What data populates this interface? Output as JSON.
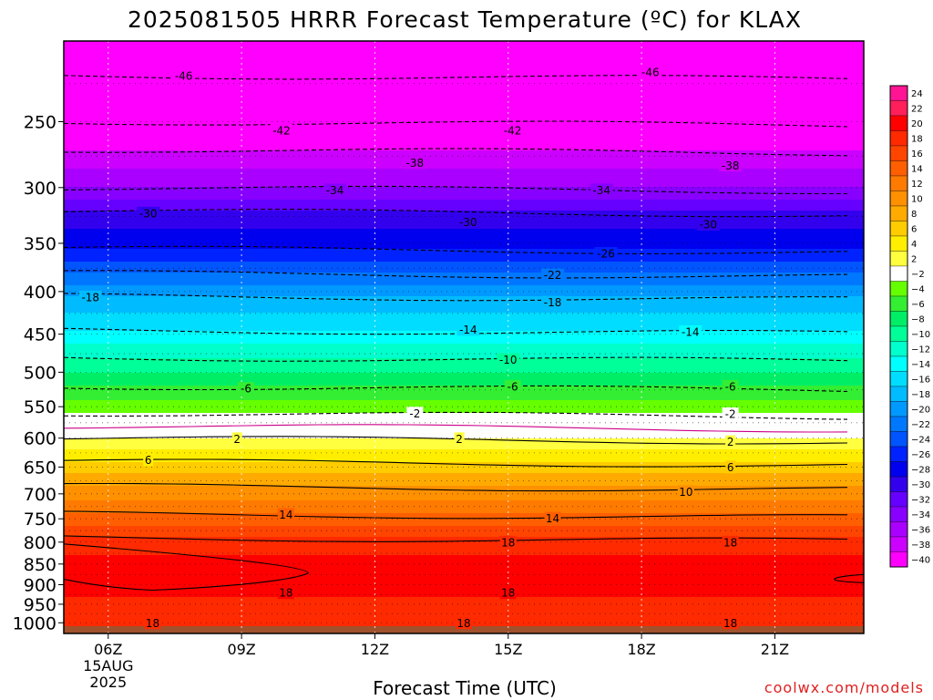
{
  "chart_data": {
    "type": "heatmap",
    "title": "2025081505 HRRR Forecast Temperature (ºC) for KLAX",
    "xlabel": "Forecast Time (UTC)",
    "ylabel": "",
    "credit": "coolwx.com/models",
    "x_range_hours": [
      5,
      23
    ],
    "x_ticks": [
      {
        "hour": 6,
        "label": "06Z",
        "date_line1": "15AUG",
        "date_line2": "2025"
      },
      {
        "hour": 9,
        "label": "09Z"
      },
      {
        "hour": 12,
        "label": "12Z"
      },
      {
        "hour": 15,
        "label": "15Z"
      },
      {
        "hour": 18,
        "label": "18Z"
      },
      {
        "hour": 21,
        "label": "21Z"
      }
    ],
    "y_scale": "log-pressure",
    "y_range_hpa": [
      1030,
      200
    ],
    "y_ticks": [
      250,
      300,
      350,
      400,
      450,
      500,
      550,
      600,
      650,
      700,
      750,
      800,
      850,
      900,
      950,
      1000
    ],
    "colorbar": {
      "levels": [
        "24",
        "22",
        "20",
        "18",
        "16",
        "14",
        "12",
        "10",
        "8",
        "6",
        "4",
        "2",
        "-2",
        "-4",
        "-6",
        "-8",
        "-10",
        "-12",
        "-14",
        "-16",
        "-18",
        "-20",
        "-22",
        "-24",
        "-26",
        "-28",
        "-30",
        "-32",
        "-34",
        "-36",
        "-38",
        "-40"
      ],
      "colors": [
        "#ff1493",
        "#ff1f5a",
        "#ff0000",
        "#ff2a00",
        "#ff4500",
        "#ff5f00",
        "#ff7a00",
        "#ff9000",
        "#ffaa00",
        "#ffcc00",
        "#ffee00",
        "#ffff40",
        "#ffffff",
        "#66ff00",
        "#33ee33",
        "#00ee66",
        "#00ff99",
        "#00ffcc",
        "#00ffff",
        "#00ddff",
        "#00bbff",
        "#0099ff",
        "#0077ff",
        "#0055ff",
        "#0022ff",
        "#0000ee",
        "#3300ee",
        "#6600ff",
        "#8800ff",
        "#aa00ff",
        "#cc00ff",
        "#ff00ff"
      ]
    },
    "surface_color": "#a0522d",
    "temperature_profile_hpa": [
      {
        "p": 200,
        "t": -50
      },
      {
        "p": 220,
        "t": -46
      },
      {
        "p": 250,
        "t": -42
      },
      {
        "p": 270,
        "t": -38
      },
      {
        "p": 300,
        "t": -34
      },
      {
        "p": 320,
        "t": -30
      },
      {
        "p": 355,
        "t": -26
      },
      {
        "p": 380,
        "t": -22
      },
      {
        "p": 405,
        "t": -18
      },
      {
        "p": 445,
        "t": -14
      },
      {
        "p": 480,
        "t": -10
      },
      {
        "p": 520,
        "t": -6
      },
      {
        "p": 560,
        "t": -2
      },
      {
        "p": 580,
        "t": 0
      },
      {
        "p": 600,
        "t": 2
      },
      {
        "p": 640,
        "t": 6
      },
      {
        "p": 685,
        "t": 10
      },
      {
        "p": 740,
        "t": 14
      },
      {
        "p": 790,
        "t": 18
      },
      {
        "p": 850,
        "t": 21
      },
      {
        "p": 900,
        "t": 22
      },
      {
        "p": 930,
        "t": 20
      },
      {
        "p": 970,
        "t": 18
      },
      {
        "p": 1000,
        "t": 18
      }
    ],
    "contour_labels": [
      {
        "value": "-46",
        "hour": 7.7,
        "p": 220
      },
      {
        "value": "-46",
        "hour": 18.2,
        "p": 218
      },
      {
        "value": "-42",
        "hour": 9.9,
        "p": 256
      },
      {
        "value": "-42",
        "hour": 15.1,
        "p": 256
      },
      {
        "value": "-38",
        "hour": 12.9,
        "p": 280
      },
      {
        "value": "-38",
        "hour": 20.0,
        "p": 282
      },
      {
        "value": "-34",
        "hour": 11.1,
        "p": 302
      },
      {
        "value": "-34",
        "hour": 17.1,
        "p": 302
      },
      {
        "value": "-30",
        "hour": 6.9,
        "p": 322
      },
      {
        "value": "-30",
        "hour": 14.1,
        "p": 330
      },
      {
        "value": "-30",
        "hour": 19.5,
        "p": 332
      },
      {
        "value": "-26",
        "hour": 17.2,
        "p": 360
      },
      {
        "value": "-22",
        "hour": 16.0,
        "p": 382
      },
      {
        "value": "-18",
        "hour": 5.6,
        "p": 406
      },
      {
        "value": "-18",
        "hour": 16.0,
        "p": 412
      },
      {
        "value": "-14",
        "hour": 14.1,
        "p": 444
      },
      {
        "value": "-14",
        "hour": 19.1,
        "p": 447
      },
      {
        "value": "-10",
        "hour": 15.0,
        "p": 483
      },
      {
        "value": "-6",
        "hour": 9.1,
        "p": 523
      },
      {
        "value": "-6",
        "hour": 15.1,
        "p": 520
      },
      {
        "value": "-6",
        "hour": 20.0,
        "p": 520
      },
      {
        "value": "-2",
        "hour": 12.9,
        "p": 560
      },
      {
        "value": "-2",
        "hour": 20.0,
        "p": 561
      },
      {
        "value": "2",
        "hour": 8.9,
        "p": 601
      },
      {
        "value": "2",
        "hour": 13.9,
        "p": 601
      },
      {
        "value": "2",
        "hour": 20.0,
        "p": 606
      },
      {
        "value": "6",
        "hour": 6.9,
        "p": 637
      },
      {
        "value": "6",
        "hour": 20.0,
        "p": 650
      },
      {
        "value": "10",
        "hour": 19.0,
        "p": 696
      },
      {
        "value": "14",
        "hour": 10.0,
        "p": 741
      },
      {
        "value": "14",
        "hour": 16.0,
        "p": 749
      },
      {
        "value": "18",
        "hour": 15.0,
        "p": 800
      },
      {
        "value": "18",
        "hour": 20.0,
        "p": 800
      },
      {
        "value": "18",
        "hour": 10.0,
        "p": 920
      },
      {
        "value": "18",
        "hour": 15.0,
        "p": 920
      },
      {
        "value": "18",
        "hour": 7.0,
        "p": 1000
      },
      {
        "value": "18",
        "hour": 14.0,
        "p": 1000
      },
      {
        "value": "18",
        "hour": 20.0,
        "p": 1000
      }
    ]
  }
}
